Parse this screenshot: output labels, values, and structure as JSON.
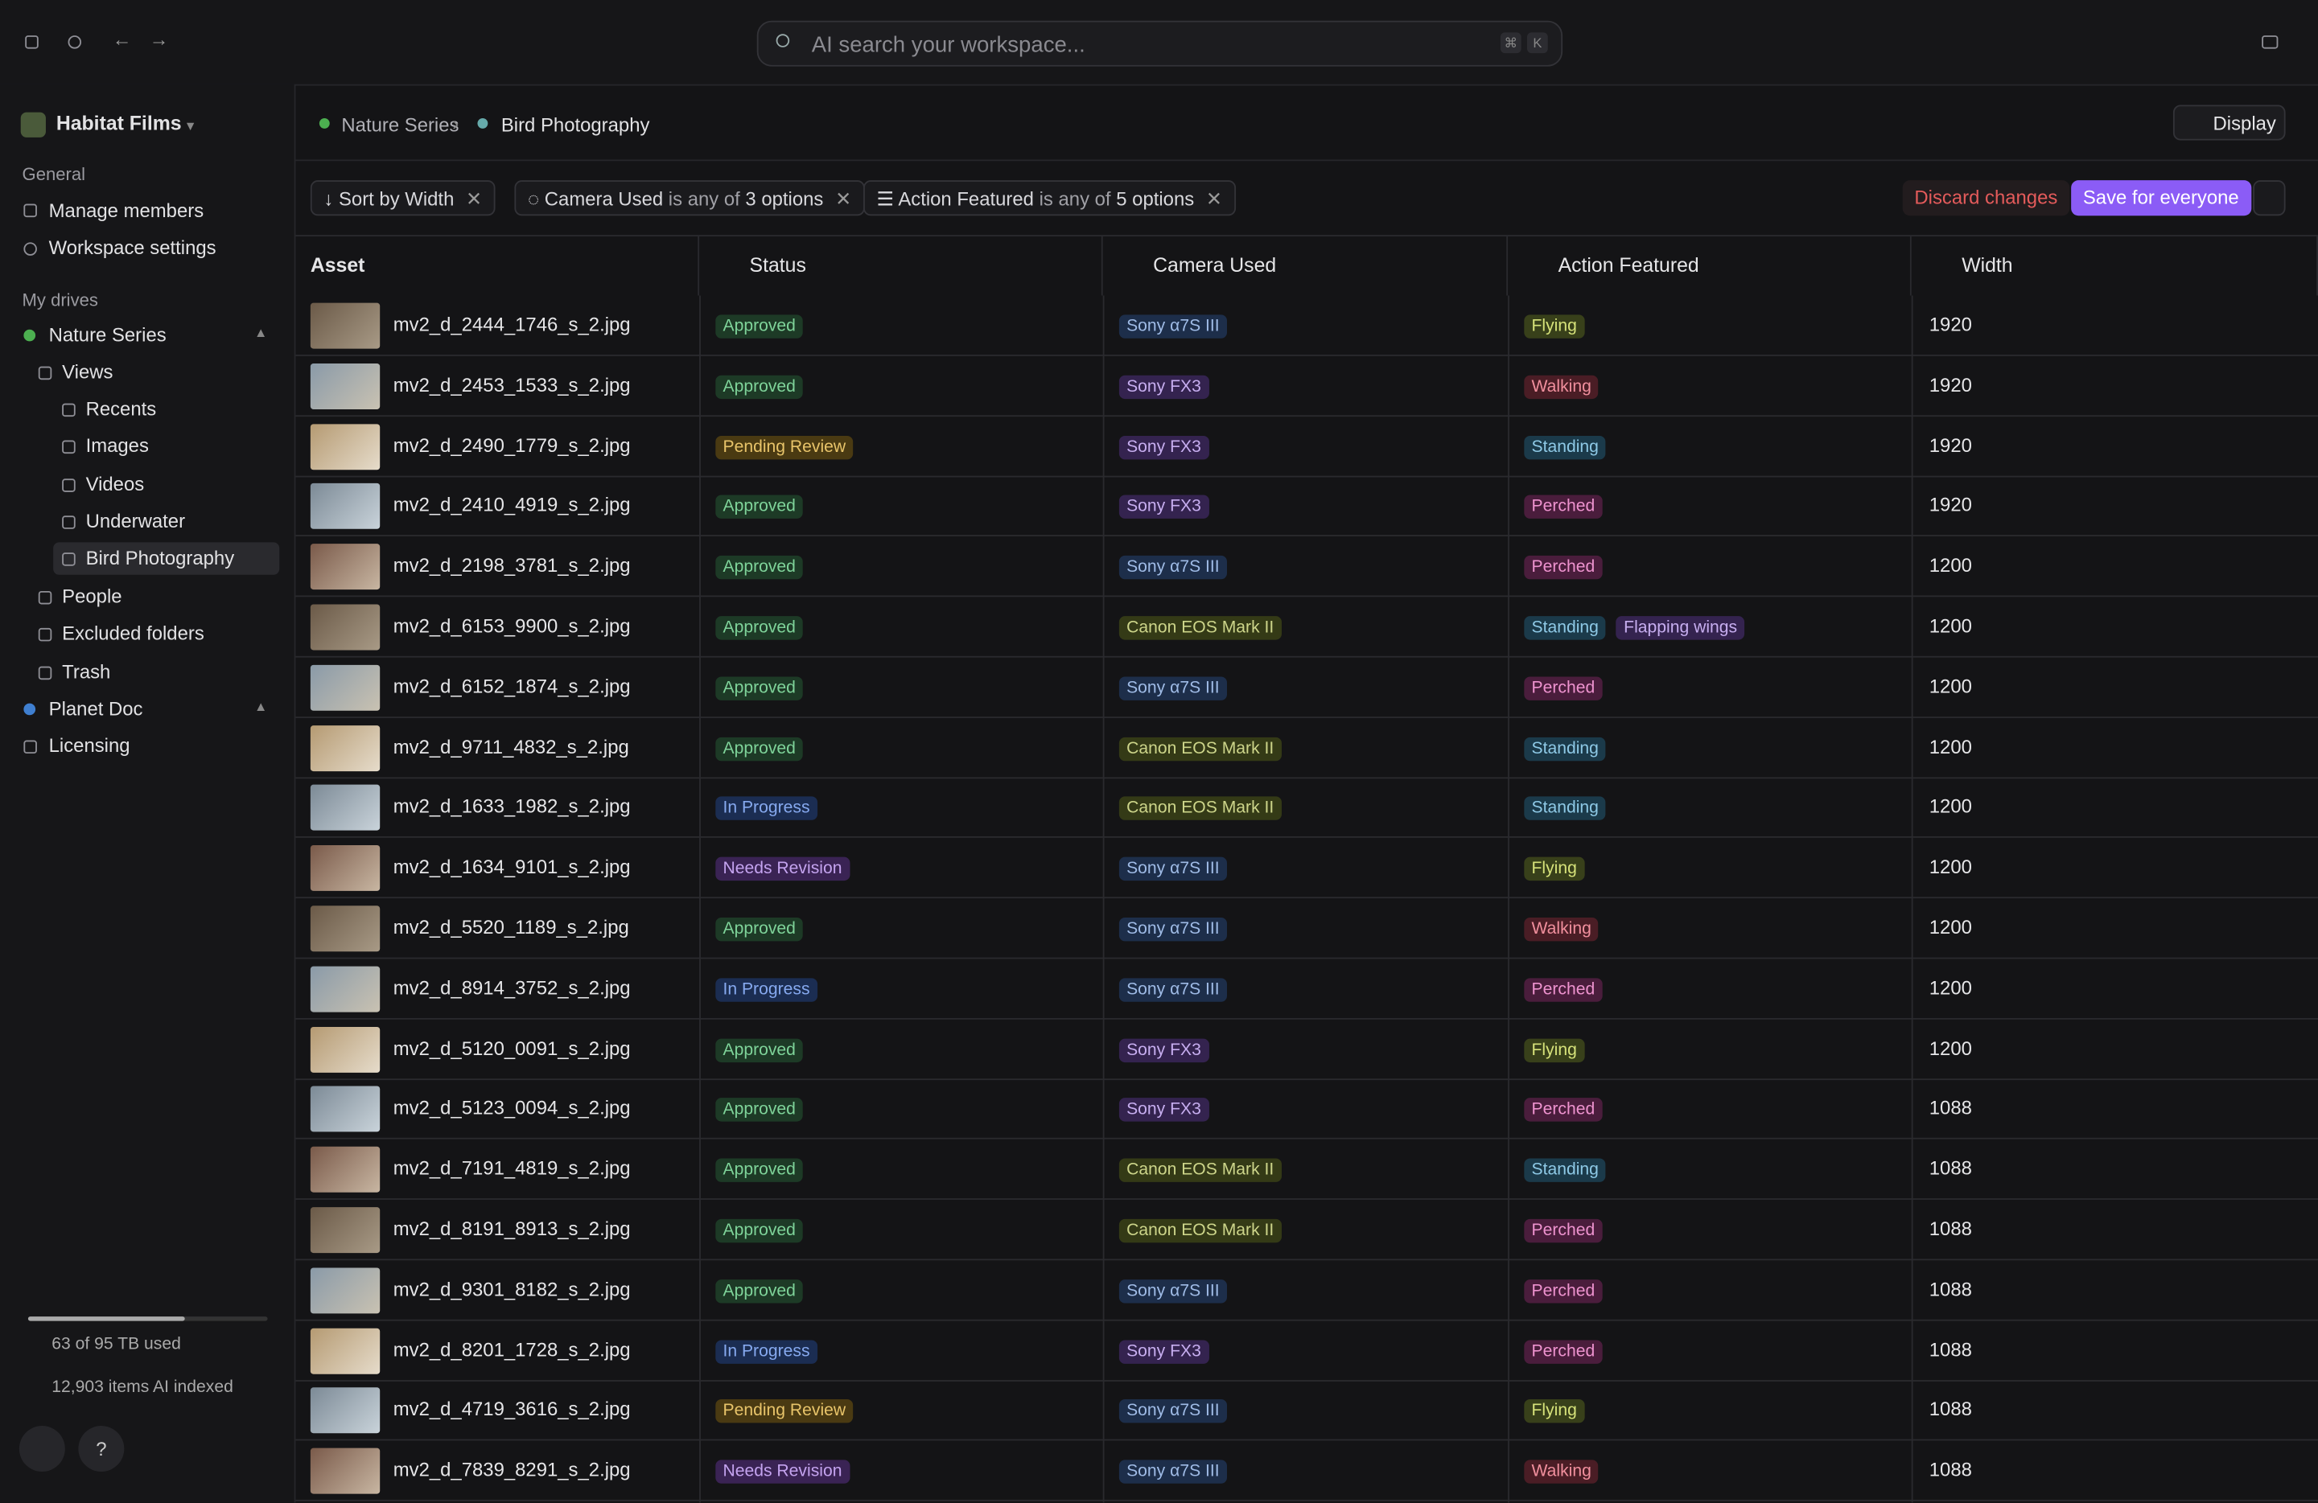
{
  "topbar": {
    "search_placeholder": "AI search your workspace...",
    "shortcut": [
      "⌘",
      "K"
    ]
  },
  "sidebar": {
    "workspace": "Habitat Films",
    "general_heading": "General",
    "general_items": [
      "Manage members",
      "Workspace settings"
    ],
    "drives_heading": "My drives",
    "drive": "Nature Series",
    "views": "Views",
    "view_items": [
      "Recents",
      "Images",
      "Videos",
      "Underwater",
      "Bird Photography"
    ],
    "drive_items": [
      "People",
      "Excluded folders",
      "Trash"
    ],
    "other_drives": [
      "Planet Doc",
      "Licensing"
    ],
    "storage": "63 of 95 TB used",
    "indexed": "12,903 items AI indexed",
    "help": "?"
  },
  "header": {
    "breadcrumb": [
      "Nature Series",
      "Bird Photography"
    ],
    "display": "Display"
  },
  "filters": {
    "sort": "Sort by Width",
    "items": [
      {
        "field": "Camera Used",
        "op": "is any of",
        "value": "3 options"
      },
      {
        "field": "Action Featured",
        "op": "is any of",
        "value": "5 options"
      }
    ],
    "discard": "Discard changes",
    "save": "Save for everyone"
  },
  "table": {
    "columns": [
      "Asset",
      "Status",
      "Camera Used",
      "Action Featured",
      "Width"
    ],
    "colors": {
      "Approved": [
        "#1d3a26",
        "#7fd49a"
      ],
      "Pending Review": [
        "#4a3a12",
        "#e8c46a"
      ],
      "In Progress": [
        "#1b2d52",
        "#86a9ef"
      ],
      "Needs Revision": [
        "#3a2354",
        "#c4a3ef"
      ],
      "Sony α7S III": [
        "#1d2e4a",
        "#9fbbe6"
      ],
      "Sony FX3": [
        "#34234f",
        "#c7aef0"
      ],
      "Canon EOS Mark II": [
        "#343a16",
        "#cdd58a"
      ],
      "Flying": [
        "#38401a",
        "#d6e27a"
      ],
      "Walking": [
        "#4a1d25",
        "#f08f9d"
      ],
      "Standing": [
        "#1b3a4a",
        "#8ec9e6"
      ],
      "Perched": [
        "#4a1d3c",
        "#ee93cf"
      ],
      "Flapping wings": [
        "#34234f",
        "#c7aef0"
      ]
    },
    "rows": [
      [
        "mv2_d_2444_1746_s_2.jpg",
        "Approved",
        "Sony α7S III",
        [
          "Flying"
        ],
        1920
      ],
      [
        "mv2_d_2453_1533_s_2.jpg",
        "Approved",
        "Sony FX3",
        [
          "Walking"
        ],
        1920
      ],
      [
        "mv2_d_2490_1779_s_2.jpg",
        "Pending Review",
        "Sony FX3",
        [
          "Standing"
        ],
        1920
      ],
      [
        "mv2_d_2410_4919_s_2.jpg",
        "Approved",
        "Sony FX3",
        [
          "Perched"
        ],
        1920
      ],
      [
        "mv2_d_2198_3781_s_2.jpg",
        "Approved",
        "Sony α7S III",
        [
          "Perched"
        ],
        1200
      ],
      [
        "mv2_d_6153_9900_s_2.jpg",
        "Approved",
        "Canon EOS Mark II",
        [
          "Standing",
          "Flapping wings"
        ],
        1200
      ],
      [
        "mv2_d_6152_1874_s_2.jpg",
        "Approved",
        "Sony α7S III",
        [
          "Perched"
        ],
        1200
      ],
      [
        "mv2_d_9711_4832_s_2.jpg",
        "Approved",
        "Canon EOS Mark II",
        [
          "Standing"
        ],
        1200
      ],
      [
        "mv2_d_1633_1982_s_2.jpg",
        "In Progress",
        "Canon EOS Mark II",
        [
          "Standing"
        ],
        1200
      ],
      [
        "mv2_d_1634_9101_s_2.jpg",
        "Needs Revision",
        "Sony α7S III",
        [
          "Flying"
        ],
        1200
      ],
      [
        "mv2_d_5520_1189_s_2.jpg",
        "Approved",
        "Sony α7S III",
        [
          "Walking"
        ],
        1200
      ],
      [
        "mv2_d_8914_3752_s_2.jpg",
        "In Progress",
        "Sony α7S III",
        [
          "Perched"
        ],
        1200
      ],
      [
        "mv2_d_5120_0091_s_2.jpg",
        "Approved",
        "Sony FX3",
        [
          "Flying"
        ],
        1200
      ],
      [
        "mv2_d_5123_0094_s_2.jpg",
        "Approved",
        "Sony FX3",
        [
          "Perched"
        ],
        1088
      ],
      [
        "mv2_d_7191_4819_s_2.jpg",
        "Approved",
        "Canon EOS Mark II",
        [
          "Standing"
        ],
        1088
      ],
      [
        "mv2_d_8191_8913_s_2.jpg",
        "Approved",
        "Canon EOS Mark II",
        [
          "Perched"
        ],
        1088
      ],
      [
        "mv2_d_9301_8182_s_2.jpg",
        "Approved",
        "Sony α7S III",
        [
          "Perched"
        ],
        1088
      ],
      [
        "mv2_d_8201_1728_s_2.jpg",
        "In Progress",
        "Sony FX3",
        [
          "Perched"
        ],
        1088
      ],
      [
        "mv2_d_4719_3616_s_2.jpg",
        "Pending Review",
        "Sony α7S III",
        [
          "Flying"
        ],
        1088
      ],
      [
        "mv2_d_7839_8291_s_2.jpg",
        "Needs Revision",
        "Sony α7S III",
        [
          "Walking"
        ],
        1088
      ]
    ]
  }
}
